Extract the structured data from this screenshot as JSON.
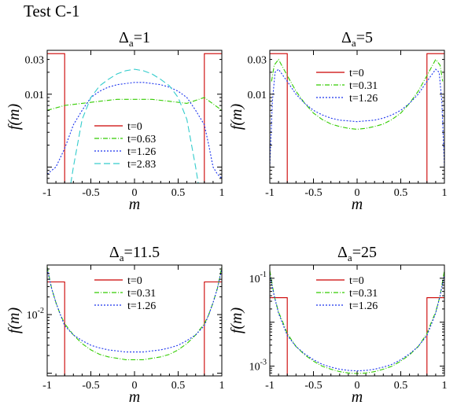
{
  "figure_title": "Test C-1",
  "chart_data": [
    {
      "type": "line",
      "title": "Δa=1",
      "title_main": "Δ",
      "title_sub": "a",
      "title_rest": "=1",
      "xlabel": "m",
      "ylabel": "f(m)",
      "xlim": [
        -1,
        1
      ],
      "ylim": [
        0.0006,
        0.04
      ],
      "yscale": "log",
      "xticks": [
        "-1",
        "-0.5",
        "0",
        "0.5",
        "1"
      ],
      "yticks": [
        {
          "value": 0.03,
          "label": "0.03"
        },
        {
          "value": 0.01,
          "label": "0.01"
        }
      ],
      "legend_position": "center",
      "series": [
        {
          "name": "t=0",
          "color": "#cc0000",
          "dash": "",
          "x": [
            -1,
            -0.98,
            -0.8,
            -0.8,
            -0.795,
            0.795,
            0.8,
            0.8,
            0.98,
            1
          ],
          "y": [
            0.036,
            0.036,
            0.036,
            0.0006,
            0.0006,
            0.0006,
            0.0006,
            0.036,
            0.036,
            0.036
          ]
        },
        {
          "name": "t=0.63",
          "color": "#33cc00",
          "dash": "6,2,1,2",
          "x": [
            -1,
            -0.8,
            -0.6,
            -0.4,
            -0.2,
            0,
            0.2,
            0.4,
            0.6,
            0.8,
            1
          ],
          "y": [
            0.006,
            0.007,
            0.0075,
            0.008,
            0.0085,
            0.0085,
            0.0085,
            0.008,
            0.0075,
            0.009,
            0.006
          ]
        },
        {
          "name": "t=1.26",
          "color": "#1a33ee",
          "dash": "2,2",
          "x": [
            -1,
            -0.9,
            -0.8,
            -0.7,
            -0.6,
            -0.5,
            -0.4,
            -0.3,
            -0.2,
            -0.1,
            0,
            0.1,
            0.2,
            0.3,
            0.4,
            0.5,
            0.6,
            0.7,
            0.8,
            0.85,
            0.9,
            0.95,
            1
          ],
          "y": [
            0.0008,
            0.001,
            0.0018,
            0.0038,
            0.006,
            0.009,
            0.011,
            0.0125,
            0.0135,
            0.014,
            0.0145,
            0.0145,
            0.014,
            0.0135,
            0.0125,
            0.011,
            0.009,
            0.006,
            0.0038,
            0.002,
            0.001,
            0.0008,
            0.0007
          ]
        },
        {
          "name": "t=2.83",
          "color": "#33cccc",
          "dash": "8,4",
          "x": [
            -0.73,
            -0.7,
            -0.6,
            -0.5,
            -0.4,
            -0.3,
            -0.2,
            -0.1,
            0,
            0.1,
            0.2,
            0.3,
            0.4,
            0.5,
            0.6,
            0.7,
            0.73
          ],
          "y": [
            0.0006,
            0.001,
            0.0045,
            0.009,
            0.013,
            0.016,
            0.019,
            0.021,
            0.022,
            0.021,
            0.019,
            0.016,
            0.013,
            0.009,
            0.0045,
            0.001,
            0.0006
          ]
        }
      ]
    },
    {
      "type": "line",
      "title": "Δa=5",
      "title_main": "Δ",
      "title_sub": "a",
      "title_rest": "=5",
      "xlabel": "m",
      "ylabel": "f(m)",
      "xlim": [
        -1,
        1
      ],
      "ylim": [
        0.0006,
        0.04
      ],
      "yscale": "log",
      "xticks": [
        "-1",
        "-0.5",
        "0",
        "0.5",
        "1"
      ],
      "yticks": [
        {
          "value": 0.03,
          "label": "0.03"
        },
        {
          "value": 0.01,
          "label": "0.01"
        }
      ],
      "legend_position": "top-center",
      "series": [
        {
          "name": "t=0",
          "color": "#cc0000",
          "dash": "",
          "x": [
            -1,
            -0.98,
            -0.8,
            -0.8,
            -0.795,
            0.795,
            0.8,
            0.8,
            0.98,
            1
          ],
          "y": [
            0.036,
            0.036,
            0.036,
            0.0006,
            0.0006,
            0.0006,
            0.0006,
            0.036,
            0.036,
            0.036
          ]
        },
        {
          "name": "t=0.31",
          "color": "#33cc00",
          "dash": "6,2,1,2",
          "x": [
            -0.98,
            -0.95,
            -0.9,
            -0.8,
            -0.7,
            -0.6,
            -0.5,
            -0.4,
            -0.3,
            -0.2,
            -0.1,
            0,
            0.1,
            0.2,
            0.3,
            0.4,
            0.5,
            0.6,
            0.7,
            0.8,
            0.9,
            0.95,
            0.98
          ],
          "y": [
            0.015,
            0.025,
            0.03,
            0.018,
            0.011,
            0.0075,
            0.0055,
            0.0045,
            0.0039,
            0.0036,
            0.0034,
            0.0033,
            0.0034,
            0.0036,
            0.0039,
            0.0045,
            0.0055,
            0.0075,
            0.011,
            0.018,
            0.03,
            0.025,
            0.015
          ]
        },
        {
          "name": "t=1.26",
          "color": "#1a33ee",
          "dash": "2,2",
          "x": [
            -1,
            -0.97,
            -0.94,
            -0.9,
            -0.8,
            -0.7,
            -0.6,
            -0.5,
            -0.4,
            -0.3,
            -0.2,
            -0.1,
            0,
            0.1,
            0.2,
            0.3,
            0.4,
            0.5,
            0.6,
            0.7,
            0.8,
            0.9,
            0.94,
            0.97,
            1
          ],
          "y": [
            0.001,
            0.008,
            0.02,
            0.022,
            0.015,
            0.01,
            0.0075,
            0.006,
            0.0052,
            0.0047,
            0.0044,
            0.0043,
            0.0042,
            0.0043,
            0.0044,
            0.0047,
            0.0052,
            0.006,
            0.0075,
            0.01,
            0.015,
            0.022,
            0.02,
            0.008,
            0.001
          ]
        }
      ]
    },
    {
      "type": "line",
      "title": "Δa=11.5",
      "title_main": "Δ",
      "title_sub": "a",
      "title_rest": "=11.5",
      "xlabel": "m",
      "ylabel": "f(m)",
      "xlim": [
        -1,
        1
      ],
      "ylim": [
        0.0009,
        0.07
      ],
      "yscale": "log",
      "xticks": [
        "-1",
        "-0.5",
        "0",
        "0.5",
        "1"
      ],
      "yticks": [
        {
          "value": 0.01,
          "label": "10",
          "exp": "-2"
        }
      ],
      "legend_position": "top-center",
      "series": [
        {
          "name": "t=0",
          "color": "#cc0000",
          "dash": "",
          "x": [
            -1,
            -0.98,
            -0.8,
            -0.8,
            -0.795,
            0.795,
            0.8,
            0.8,
            0.98,
            1
          ],
          "y": [
            0.036,
            0.036,
            0.036,
            0.0009,
            0.0009,
            0.0009,
            0.0009,
            0.036,
            0.036,
            0.036
          ]
        },
        {
          "name": "t=0.31",
          "color": "#33cc00",
          "dash": "6,2,1,2",
          "x": [
            -1,
            -0.95,
            -0.9,
            -0.85,
            -0.8,
            -0.7,
            -0.6,
            -0.5,
            -0.4,
            -0.3,
            -0.2,
            -0.1,
            0,
            0.1,
            0.2,
            0.3,
            0.4,
            0.5,
            0.6,
            0.7,
            0.8,
            0.85,
            0.9,
            0.95,
            1
          ],
          "y": [
            0.065,
            0.028,
            0.016,
            0.01,
            0.007,
            0.0045,
            0.0032,
            0.0025,
            0.0021,
            0.0019,
            0.0018,
            0.0017,
            0.0017,
            0.0017,
            0.0018,
            0.0019,
            0.0021,
            0.0025,
            0.0032,
            0.0045,
            0.007,
            0.01,
            0.016,
            0.028,
            0.065
          ]
        },
        {
          "name": "t=1.26",
          "color": "#1a33ee",
          "dash": "2,2",
          "x": [
            -1,
            -0.95,
            -0.9,
            -0.85,
            -0.8,
            -0.7,
            -0.6,
            -0.5,
            -0.4,
            -0.3,
            -0.2,
            -0.1,
            0,
            0.1,
            0.2,
            0.3,
            0.4,
            0.5,
            0.6,
            0.7,
            0.8,
            0.85,
            0.9,
            0.95,
            1
          ],
          "y": [
            0.06,
            0.028,
            0.016,
            0.01,
            0.0065,
            0.0045,
            0.0036,
            0.003,
            0.0027,
            0.0025,
            0.0024,
            0.0023,
            0.0023,
            0.0023,
            0.0024,
            0.0025,
            0.0027,
            0.003,
            0.0036,
            0.0045,
            0.0065,
            0.01,
            0.016,
            0.028,
            0.06
          ]
        }
      ]
    },
    {
      "type": "line",
      "title": "Δa=25",
      "title_main": "Δ",
      "title_sub": "a",
      "title_rest": "=25",
      "xlabel": "m",
      "ylabel": "f(m)",
      "xlim": [
        -1,
        1
      ],
      "ylim": [
        0.0006,
        0.2
      ],
      "yscale": "log",
      "xticks": [
        "-1",
        "-0.5",
        "0",
        "0.5",
        "1"
      ],
      "yticks": [
        {
          "value": 0.1,
          "label": "10",
          "exp": "-1"
        },
        {
          "value": 0.001,
          "label": "10",
          "exp": "-3"
        }
      ],
      "legend_position": "top-center",
      "series": [
        {
          "name": "t=0",
          "color": "#cc0000",
          "dash": "",
          "x": [
            -1,
            -0.98,
            -0.8,
            -0.8,
            -0.795,
            0.795,
            0.8,
            0.8,
            0.98,
            1
          ],
          "y": [
            0.036,
            0.036,
            0.036,
            0.0006,
            0.0006,
            0.0006,
            0.0006,
            0.036,
            0.036,
            0.036
          ]
        },
        {
          "name": "t=0.31",
          "color": "#33cc00",
          "dash": "6,2,1,2",
          "x": [
            -1,
            -0.95,
            -0.9,
            -0.85,
            -0.8,
            -0.7,
            -0.6,
            -0.5,
            -0.4,
            -0.3,
            -0.2,
            -0.1,
            0,
            0.1,
            0.2,
            0.3,
            0.4,
            0.5,
            0.6,
            0.7,
            0.8,
            0.85,
            0.9,
            0.95,
            1
          ],
          "y": [
            0.15,
            0.04,
            0.017,
            0.01,
            0.0055,
            0.0028,
            0.0018,
            0.0013,
            0.001,
            0.00085,
            0.00075,
            0.0007,
            0.00068,
            0.0007,
            0.00075,
            0.00085,
            0.001,
            0.0013,
            0.0018,
            0.0028,
            0.0055,
            0.01,
            0.017,
            0.04,
            0.15
          ]
        },
        {
          "name": "t=1.26",
          "color": "#1a33ee",
          "dash": "2,2",
          "x": [
            -1,
            -0.95,
            -0.9,
            -0.85,
            -0.8,
            -0.7,
            -0.6,
            -0.5,
            -0.4,
            -0.3,
            -0.2,
            -0.1,
            0,
            0.1,
            0.2,
            0.3,
            0.4,
            0.5,
            0.6,
            0.7,
            0.8,
            0.85,
            0.9,
            0.95,
            1
          ],
          "y": [
            0.12,
            0.04,
            0.016,
            0.009,
            0.005,
            0.0028,
            0.0019,
            0.0014,
            0.0011,
            0.00095,
            0.00085,
            0.0008,
            0.00078,
            0.0008,
            0.00085,
            0.00095,
            0.0011,
            0.0014,
            0.0019,
            0.0028,
            0.005,
            0.009,
            0.016,
            0.04,
            0.12
          ]
        }
      ]
    }
  ]
}
